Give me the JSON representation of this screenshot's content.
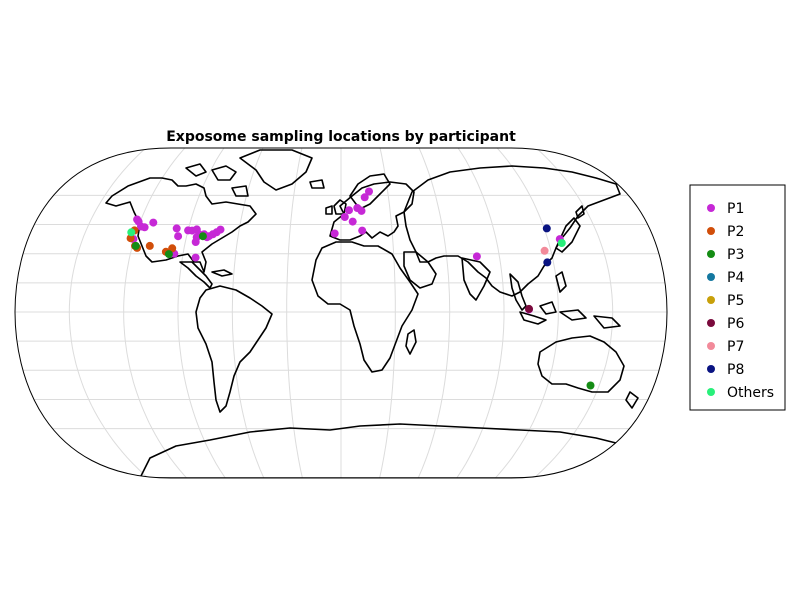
{
  "title": "Exposome sampling locations by participant",
  "legend": {
    "placement": "right",
    "entries": [
      {
        "name": "P1",
        "color": "#c628d6"
      },
      {
        "name": "P2",
        "color": "#d14e0a"
      },
      {
        "name": "P3",
        "color": "#148c14"
      },
      {
        "name": "P4",
        "color": "#1478a0"
      },
      {
        "name": "P5",
        "color": "#c8a00a"
      },
      {
        "name": "P6",
        "color": "#7a0a3c"
      },
      {
        "name": "P7",
        "color": "#f28a9a"
      },
      {
        "name": "P8",
        "color": "#0a1482"
      },
      {
        "name": "Others",
        "color": "#28f07a"
      }
    ]
  },
  "chart_data": {
    "type": "scatter",
    "projection": "Winkel tripel",
    "grid": true,
    "series": [
      {
        "name": "P1",
        "points": [
          [
            -122.4,
            47.6
          ],
          [
            -121.0,
            46.5
          ],
          [
            -118.5,
            44.0
          ],
          [
            -116.2,
            43.6
          ],
          [
            -112.0,
            46.0
          ],
          [
            -120.5,
            37.5
          ],
          [
            -97.0,
            43.0
          ],
          [
            -95.0,
            39.0
          ],
          [
            -90.0,
            42.0
          ],
          [
            -87.6,
            41.9
          ],
          [
            -85.0,
            42.5
          ],
          [
            -83.0,
            40.0
          ],
          [
            -84.0,
            36.0
          ],
          [
            -80.0,
            40.0
          ],
          [
            -78.0,
            38.5
          ],
          [
            -77.0,
            39.0
          ],
          [
            -75.0,
            40.0
          ],
          [
            -73.0,
            41.0
          ],
          [
            -71.0,
            42.4
          ],
          [
            -95.0,
            30.0
          ],
          [
            -82.5,
            28.0
          ],
          [
            -84.0,
            38.5
          ],
          [
            -3.7,
            40.4
          ],
          [
            2.3,
            48.9
          ],
          [
            4.9,
            52.4
          ],
          [
            7.0,
            46.5
          ],
          [
            12.5,
            52.0
          ],
          [
            10.0,
            53.5
          ],
          [
            15.0,
            59.0
          ],
          [
            18.0,
            62.0
          ],
          [
            12.5,
            41.9
          ],
          [
            77.2,
            28.6
          ],
          [
            127.0,
            37.5
          ],
          [
            103.8,
            1.35
          ]
        ]
      },
      {
        "name": "P2",
        "points": [
          [
            -122.3,
            38.0
          ],
          [
            -121.5,
            42.0
          ],
          [
            -118.5,
            34.0
          ],
          [
            -117.0,
            33.0
          ],
          [
            -110.0,
            34.0
          ],
          [
            -96.8,
            32.8
          ],
          [
            -100.0,
            31.0
          ]
        ]
      },
      {
        "name": "P3",
        "points": [
          [
            -118.0,
            34.0
          ],
          [
            -98.0,
            29.8
          ],
          [
            -80.5,
            39.0
          ],
          [
            145.0,
            -37.8
          ]
        ]
      },
      {
        "name": "P4",
        "points": []
      },
      {
        "name": "P5",
        "points": []
      },
      {
        "name": "P6",
        "points": [
          [
            103.8,
            1.6
          ]
        ]
      },
      {
        "name": "P7",
        "points": [
          [
            116.4,
            31.5
          ]
        ]
      },
      {
        "name": "P8",
        "points": [
          [
            121.5,
            43.0
          ],
          [
            116.5,
            25.5
          ]
        ]
      },
      {
        "name": "Others",
        "points": [
          [
            -123.0,
            41.0
          ],
          [
            127.5,
            35.5
          ]
        ]
      }
    ]
  }
}
